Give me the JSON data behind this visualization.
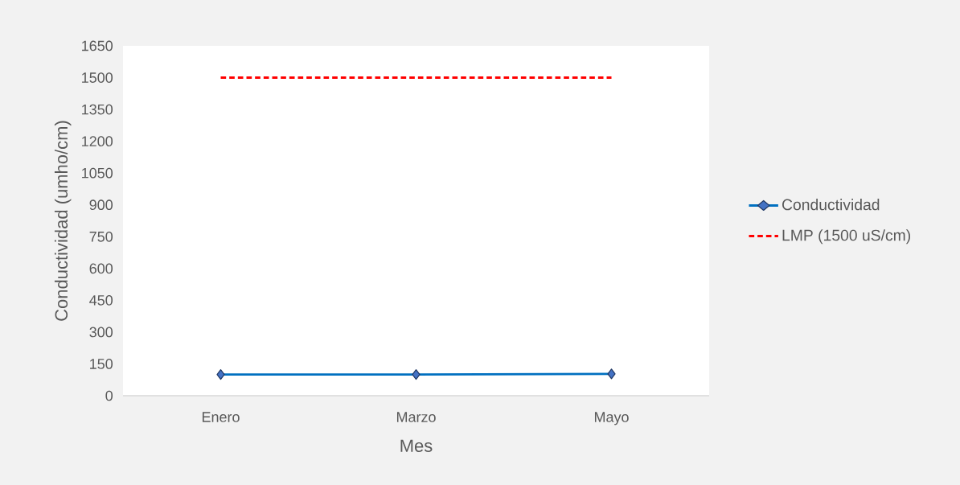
{
  "chart_data": {
    "type": "line",
    "xlabel": "Mes",
    "ylabel": "Conductividad (umho/cm)",
    "categories": [
      "Enero",
      "Marzo",
      "Mayo"
    ],
    "series": [
      {
        "name": "Conductividad",
        "color": "#0070c0",
        "values": [
          100,
          100,
          103
        ],
        "marker": "diamond",
        "line_style": "solid"
      },
      {
        "name": "LMP (1500 uS/cm)",
        "color": "#ff0000",
        "values": [
          1500,
          1500,
          1500
        ],
        "marker": "none",
        "line_style": "dashed"
      }
    ],
    "ylim": [
      0,
      1650
    ],
    "yticks": [
      0,
      150,
      300,
      450,
      600,
      750,
      900,
      1050,
      1200,
      1350,
      1500,
      1650
    ],
    "grid": false,
    "legend": "right"
  }
}
